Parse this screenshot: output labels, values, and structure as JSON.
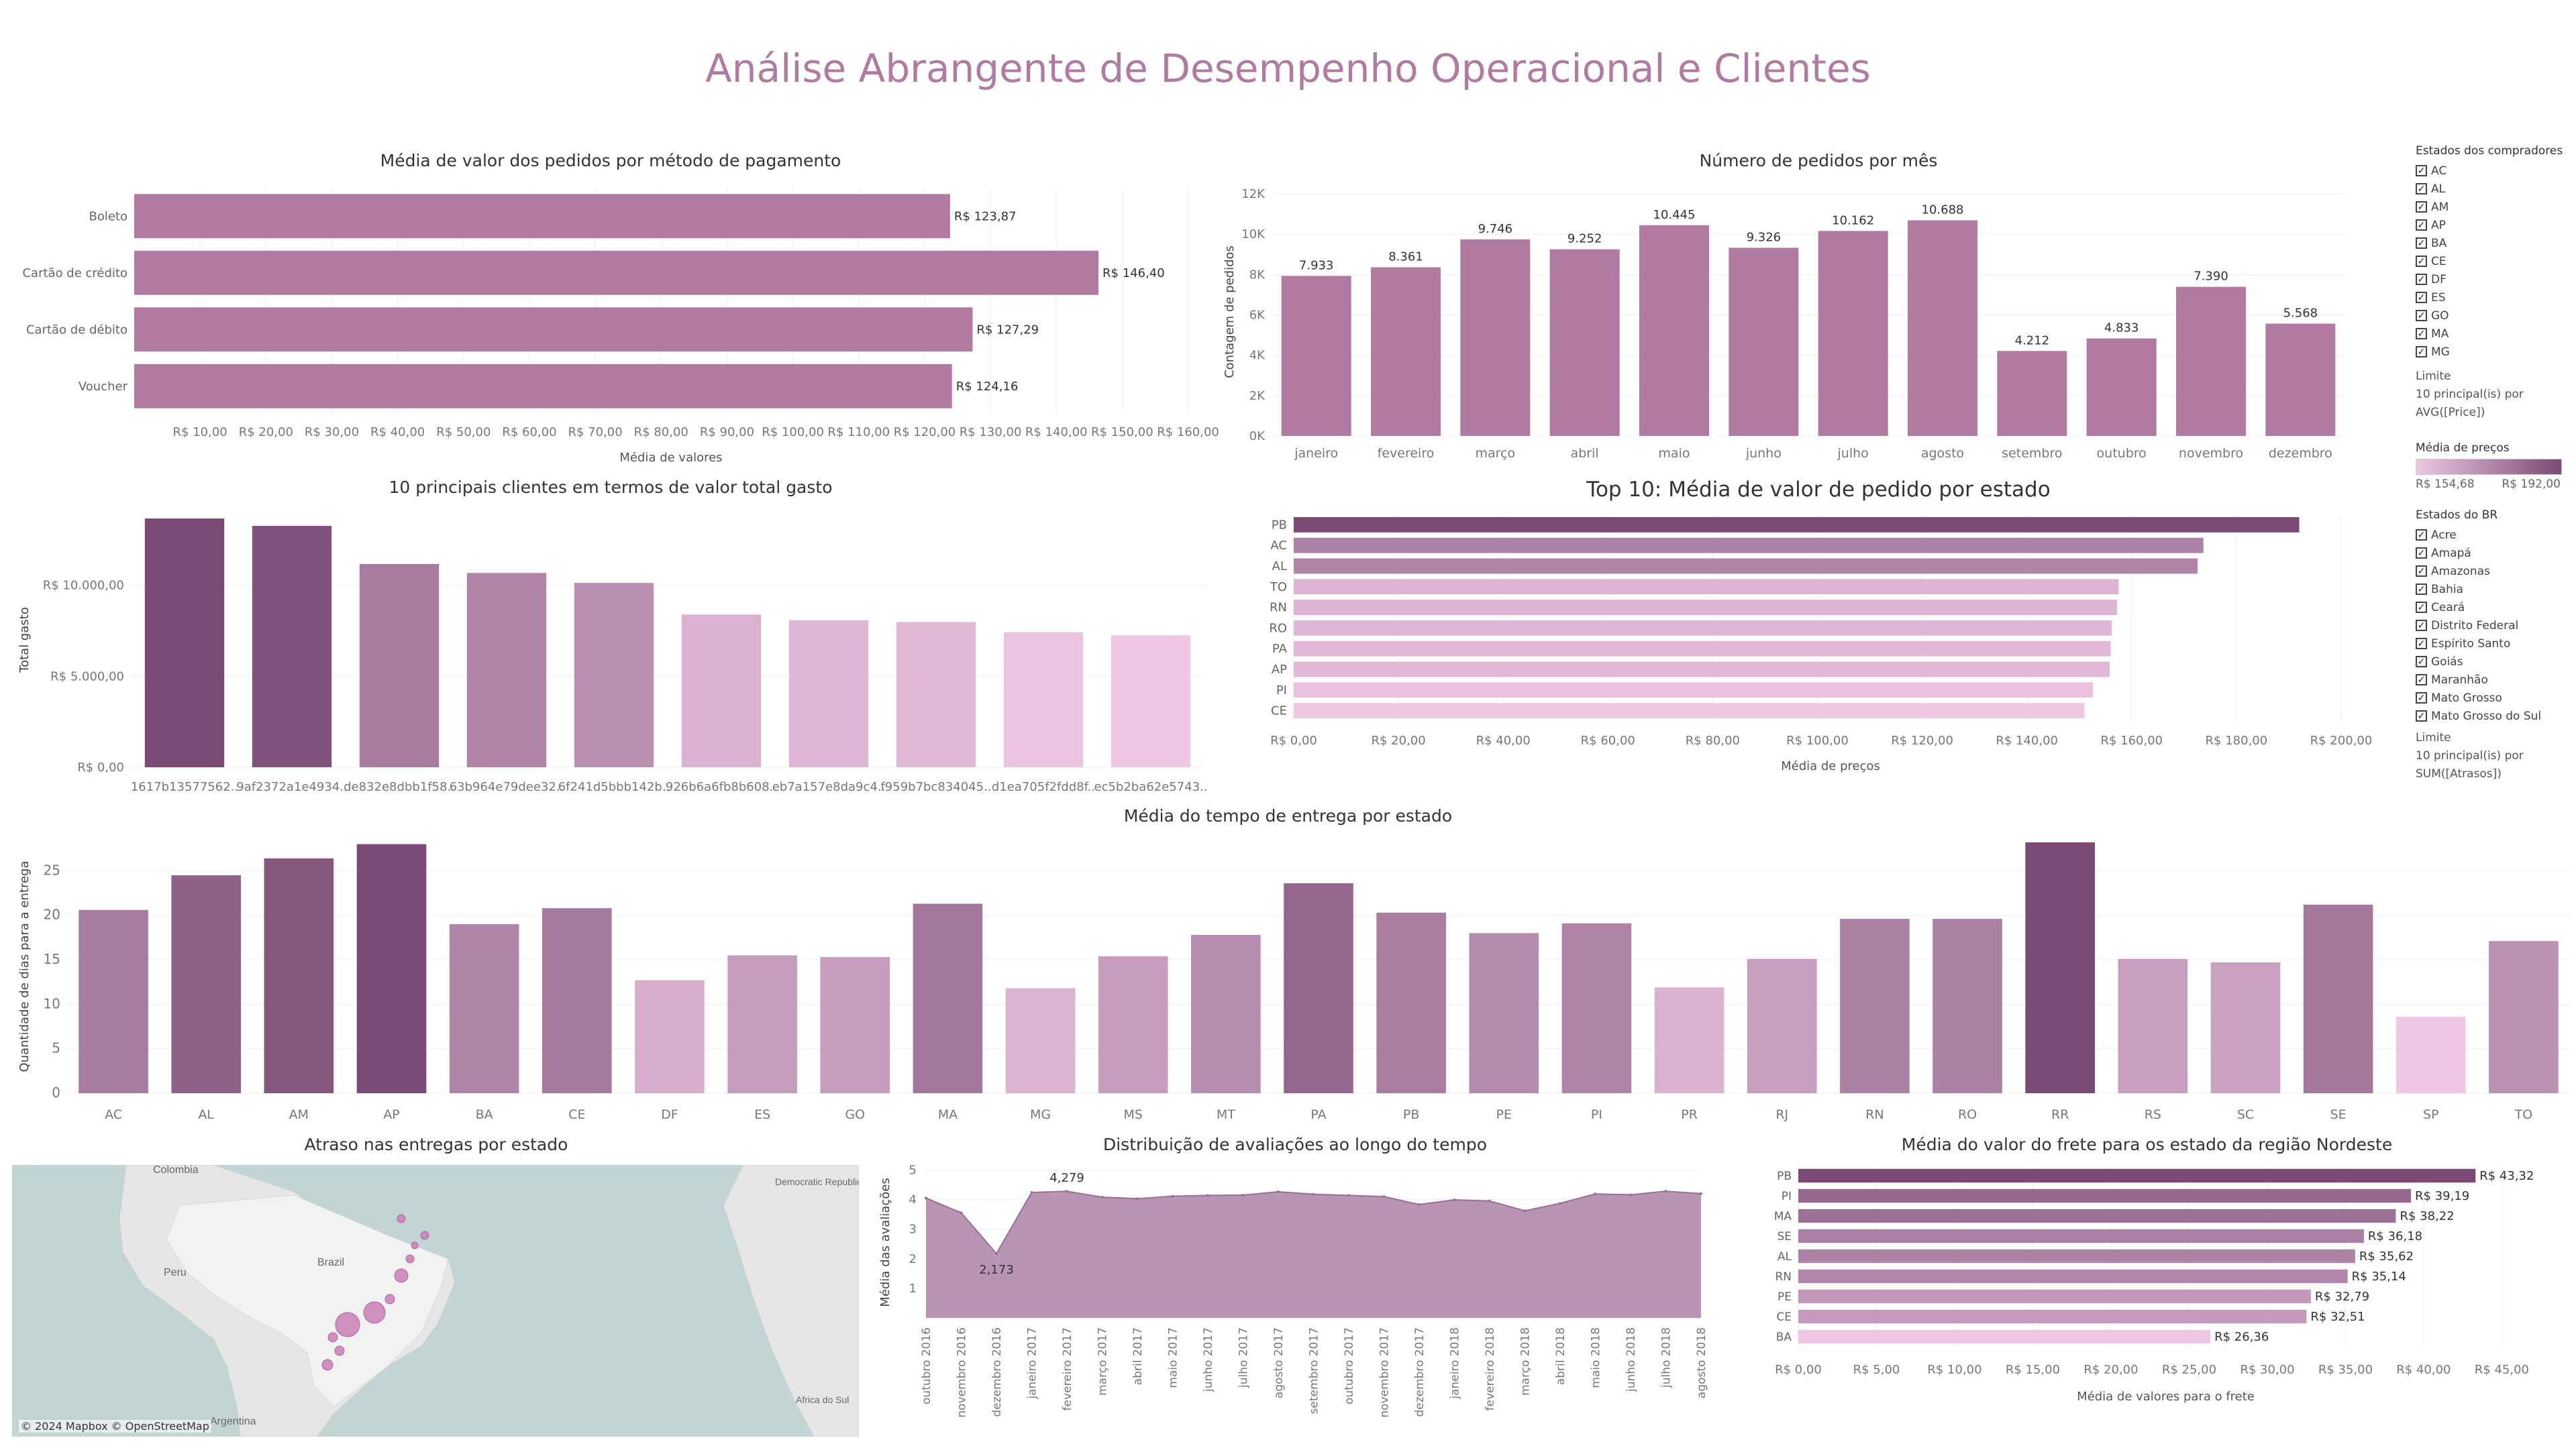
{
  "page_title": "Análise Abrangente de Desempenho Operacional e Clientes",
  "colors": {
    "title": "#b07aa1",
    "bar": "#b07aa1",
    "dark": "#7a4a74",
    "light": "#efc7e2"
  },
  "chart_data": [
    {
      "id": "payment",
      "type": "bar",
      "orientation": "horizontal",
      "title": "Média de valor dos pedidos por método de pagamento",
      "xlabel": "Média de valores",
      "categories": [
        "Boleto",
        "Cartão de crédito",
        "Cartão de débito",
        "Voucher"
      ],
      "values": [
        123.87,
        146.4,
        127.29,
        124.16
      ],
      "value_labels": [
        "R$ 123,87",
        "R$ 146,40",
        "R$ 127,29",
        "R$ 124,16"
      ],
      "xlim": [
        0,
        163
      ],
      "ticks": [
        10,
        20,
        30,
        40,
        50,
        60,
        70,
        80,
        90,
        100,
        110,
        120,
        130,
        140,
        150,
        160
      ],
      "tick_labels": [
        "R$ 10,00",
        "R$ 20,00",
        "R$ 30,00",
        "R$ 40,00",
        "R$ 50,00",
        "R$ 60,00",
        "R$ 70,00",
        "R$ 80,00",
        "R$ 90,00",
        "R$ 100,00",
        "R$ 110,00",
        "R$ 120,00",
        "R$ 130,00",
        "R$ 140,00",
        "R$ 150,00",
        "R$ 160,00"
      ]
    },
    {
      "id": "orders_month",
      "type": "bar",
      "title": "Número de pedidos por mês",
      "ylabel": "Contagem de pedidos",
      "categories": [
        "janeiro",
        "fevereiro",
        "março",
        "abril",
        "maio",
        "junho",
        "julho",
        "agosto",
        "setembro",
        "outubro",
        "novembro",
        "dezembro"
      ],
      "values": [
        7933,
        8361,
        9746,
        9252,
        10445,
        9326,
        10162,
        10688,
        4212,
        4833,
        7390,
        5568
      ],
      "value_labels": [
        "7.933",
        "8.361",
        "9.746",
        "9.252",
        "10.445",
        "9.326",
        "10.162",
        "10.688",
        "4.212",
        "4.833",
        "7.390",
        "5.568"
      ],
      "ylim": [
        0,
        12300
      ],
      "ticks": [
        0,
        2000,
        4000,
        6000,
        8000,
        10000,
        12000
      ],
      "tick_labels": [
        "0K",
        "2K",
        "4K",
        "6K",
        "8K",
        "10K",
        "12K"
      ]
    },
    {
      "id": "top_clients",
      "type": "bar",
      "title": "10  principais clientes em termos de valor total gasto",
      "ylabel": "Total gasto",
      "categories": [
        "1617b13577562..",
        "9af2372a1e4934..",
        "de832e8dbb1f58..",
        "63b964e79dee32..",
        "6f241d5bbb142b..",
        "926b6a6fb8b608..",
        "eb7a157e8da9c4..",
        "f959b7bc834045..",
        "d1ea705f2fdd8f..",
        "ec5b2ba62e5743.."
      ],
      "values": [
        13664,
        13260,
        11165,
        10675,
        10125,
        8390,
        8080,
        7980,
        7420,
        7250
      ],
      "ylim": [
        0,
        14000
      ],
      "ticks": [
        0,
        5000,
        10000
      ],
      "tick_labels": [
        "R$ 0,00",
        "R$ 5.000,00",
        "R$ 10.000,00"
      ]
    },
    {
      "id": "top_state_value",
      "type": "bar",
      "orientation": "horizontal",
      "title": "Top 10: Média de valor de pedido por estado",
      "xlabel": "Média de preços",
      "categories": [
        "PB",
        "AC",
        "AL",
        "TO",
        "RN",
        "RO",
        "PA",
        "AP",
        "PI",
        "CE"
      ],
      "values": [
        192.0,
        173.7,
        172.6,
        157.5,
        157.2,
        156.2,
        156.0,
        155.8,
        152.6,
        151.0
      ],
      "xlim": [
        0,
        205
      ],
      "ticks": [
        0,
        20,
        40,
        60,
        80,
        100,
        120,
        140,
        160,
        180,
        200
      ],
      "tick_labels": [
        "R$ 0,00",
        "R$ 20,00",
        "R$ 40,00",
        "R$ 60,00",
        "R$ 80,00",
        "R$ 100,00",
        "R$ 120,00",
        "R$ 140,00",
        "R$ 160,00",
        "R$ 180,00",
        "R$ 200,00"
      ]
    },
    {
      "id": "delivery_time",
      "type": "bar",
      "title": "Média do tempo de entrega por estado",
      "ylabel": "Quantidade de dias para a entrega",
      "categories": [
        "AC",
        "AL",
        "AM",
        "AP",
        "BA",
        "CE",
        "DF",
        "ES",
        "GO",
        "MA",
        "MG",
        "MS",
        "MT",
        "PA",
        "PB",
        "PE",
        "PI",
        "PR",
        "RJ",
        "RN",
        "RO",
        "RR",
        "RS",
        "SC",
        "SE",
        "SP",
        "TO"
      ],
      "values": [
        20.6,
        24.5,
        26.4,
        28.0,
        19.0,
        20.8,
        12.7,
        15.5,
        15.3,
        21.3,
        11.8,
        15.4,
        17.8,
        23.6,
        20.3,
        18.0,
        19.1,
        11.9,
        15.1,
        19.6,
        19.6,
        28.2,
        15.1,
        14.7,
        21.2,
        8.6,
        17.1
      ],
      "ylim": [
        0,
        28.5
      ],
      "ticks": [
        0,
        5,
        10,
        15,
        20,
        25
      ],
      "tick_labels": [
        "0",
        "5",
        "10",
        "15",
        "20",
        "25"
      ]
    },
    {
      "id": "reviews_time",
      "type": "area",
      "title": "Distribuição de avaliações ao longo do tempo",
      "ylabel": "Média das avaliações",
      "categories": [
        "outubro 2016",
        "novembro 2016",
        "dezembro 2016",
        "janeiro 2017",
        "fevereiro 2017",
        "março 2017",
        "abril 2017",
        "maio 2017",
        "junho 2017",
        "julho 2017",
        "agosto 2017",
        "setembro 2017",
        "outubro 2017",
        "novembro 2017",
        "dezembro 2017",
        "janeiro 2018",
        "fevereiro 2018",
        "março 2018",
        "abril 2018",
        "maio 2018",
        "junho 2018",
        "julho 2018",
        "agosto 2018"
      ],
      "values": [
        4.05,
        3.55,
        2.173,
        4.24,
        4.279,
        4.08,
        4.03,
        4.11,
        4.14,
        4.15,
        4.26,
        4.18,
        4.14,
        4.1,
        3.83,
        3.99,
        3.95,
        3.62,
        3.87,
        4.19,
        4.16,
        4.28,
        4.2
      ],
      "annotations": [
        {
          "index": 4,
          "label": "4,279"
        },
        {
          "index": 2,
          "label": "2,173"
        }
      ],
      "ylim": [
        0,
        5.1
      ],
      "ticks": [
        1,
        2,
        3,
        4,
        5
      ],
      "tick_labels": [
        "1",
        "2",
        "3",
        "4",
        "5"
      ]
    },
    {
      "id": "freight_ne",
      "type": "bar",
      "orientation": "horizontal",
      "title": "Média do valor do frete para os estado da região Nordeste",
      "xlabel": "Média de valores para o frete",
      "categories": [
        "PB",
        "PI",
        "MA",
        "SE",
        "AL",
        "RN",
        "PE",
        "CE",
        "BA"
      ],
      "values": [
        43.32,
        39.19,
        38.22,
        36.18,
        35.62,
        35.14,
        32.79,
        32.51,
        26.36
      ],
      "value_labels": [
        "R$ 43,32",
        "R$ 39,19",
        "R$ 38,22",
        "R$ 36,18",
        "R$ 35,62",
        "R$ 35,14",
        "R$ 32,79",
        "R$ 32,51",
        "R$ 26,36"
      ],
      "xlim": [
        0,
        47
      ],
      "ticks": [
        0,
        5,
        10,
        15,
        20,
        25,
        30,
        35,
        40,
        45
      ],
      "tick_labels": [
        "R$ 0,00",
        "R$ 5,00",
        "R$ 10,00",
        "R$ 15,00",
        "R$ 20,00",
        "R$ 25,00",
        "R$ 30,00",
        "R$ 35,00",
        "R$ 40,00",
        "R$ 45,00"
      ]
    }
  ],
  "map": {
    "title": "Atraso nas entregas por estado",
    "attribution": "© 2024 Mapbox © OpenStreetMap",
    "labels": [
      "Colombia",
      "Peru",
      "Brazil",
      "Argentina",
      "Democratic Republic of Congo",
      "Africa do Sul"
    ]
  },
  "filters": {
    "buyers": {
      "header": "Estados dos compradores",
      "items": [
        "AC",
        "AL",
        "AM",
        "AP",
        "BA",
        "CE",
        "DF",
        "ES",
        "GO",
        "MA",
        "MG"
      ],
      "limit_title": "Limite",
      "limit_lines": [
        "10 principal(is) por",
        "AVG([Price])"
      ]
    },
    "legend": {
      "header": "Média de preços",
      "min": "R$ 154,68",
      "max": "R$ 192,00"
    },
    "br_states": {
      "header": "Estados do BR",
      "items": [
        "Acre",
        "Amapá",
        "Amazonas",
        "Bahia",
        "Ceará",
        "Distrito Federal",
        "Espírito Santo",
        "Goiás",
        "Maranhão",
        "Mato Grosso",
        "Mato Grosso do Sul"
      ],
      "limit_title": "Limite",
      "limit_lines": [
        "10 principal(is) por",
        "SUM([Atrasos])"
      ]
    }
  }
}
